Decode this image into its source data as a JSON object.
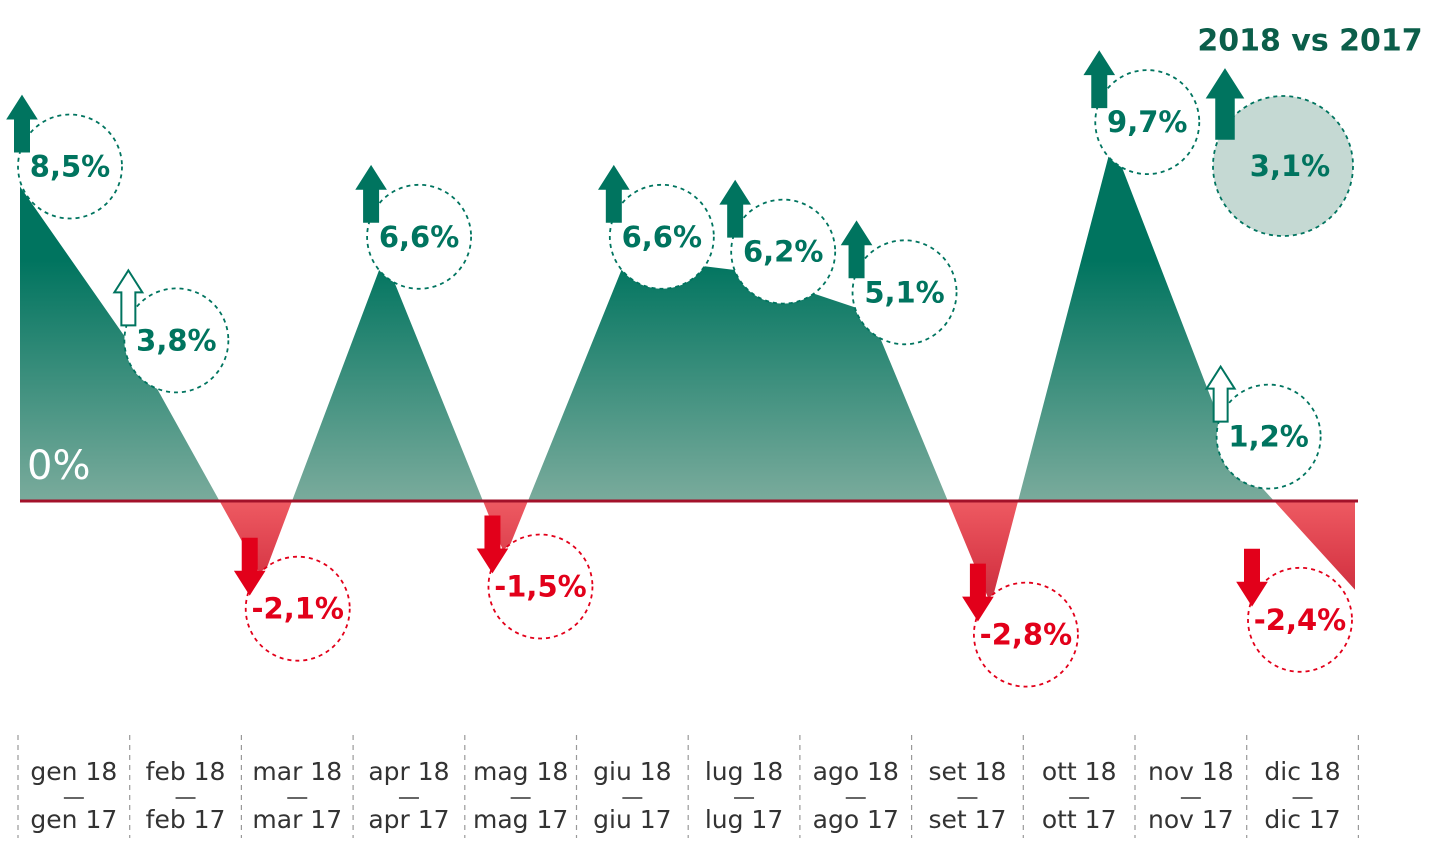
{
  "chart_data": {
    "type": "area",
    "title": "2018 vs 2017",
    "categories": [
      "gen 18",
      "feb 18",
      "mar 18",
      "apr 18",
      "mag 18",
      "giu 18",
      "lug 18",
      "ago 18",
      "set 18",
      "ott 18",
      "nov 18",
      "dic 18"
    ],
    "categories_prev": [
      "gen 17",
      "feb 17",
      "mar 17",
      "apr 17",
      "mag 17",
      "giu 17",
      "lug 17",
      "ago 17",
      "set 17",
      "ott 17",
      "nov 17",
      "dic 17"
    ],
    "values": [
      8.5,
      3.8,
      -2.1,
      6.6,
      -1.5,
      6.6,
      6.2,
      5.1,
      -2.8,
      9.7,
      1.2,
      -2.4
    ],
    "value_labels": [
      "8,5%",
      "3,8%",
      "-2,1%",
      "6,6%",
      "-1,5%",
      "6,6%",
      "6,2%",
      "5,1%",
      "-2,8%",
      "9,7%",
      "1,2%",
      "-2,4%"
    ],
    "total": {
      "value": 3.1,
      "label": "3,1%"
    },
    "positive_color": "#00745f",
    "negative_color": "#e2001a",
    "ylim": [
      -5,
      10
    ],
    "yticks": [
      {
        "value": 0,
        "label": "0%"
      }
    ]
  }
}
